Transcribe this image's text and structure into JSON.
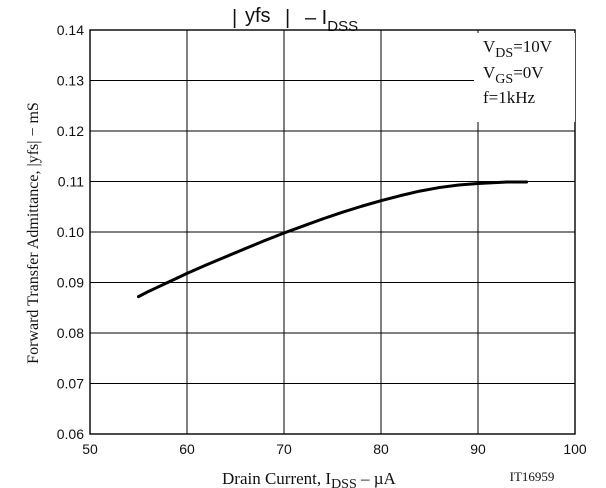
{
  "chart_data": {
    "type": "line",
    "title": "|yfs| − I_DSS",
    "title_parts": {
      "left": "yfs",
      "dash": "– I",
      "sub": "DSS"
    },
    "xlabel": "Drain Current, I_DSS − µA",
    "xlabel_parts": {
      "pre": "Drain Current, I",
      "sub": "DSS",
      "post": " –  µA"
    },
    "ylabel": "Forward Transfer Admittance, |yfs| − mS",
    "xlim": [
      50,
      100
    ],
    "ylim": [
      0.06,
      0.14
    ],
    "x_ticks": [
      "50",
      "60",
      "70",
      "80",
      "90",
      "100"
    ],
    "y_ticks": [
      "0.06",
      "0.07",
      "0.08",
      "0.09",
      "0.10",
      "0.11",
      "0.12",
      "0.13",
      "0.14"
    ],
    "grid": true,
    "conditions": {
      "vds": {
        "pre": "V",
        "sub": "DS",
        "post": "=10V"
      },
      "vgs": {
        "pre": "V",
        "sub": "GS",
        "post": "=0V"
      },
      "freq": "f=1kHz"
    },
    "figure_id": "IT16959",
    "series": [
      {
        "x": [
          55,
          56,
          57,
          58,
          59,
          60,
          62,
          64,
          66,
          68,
          70,
          72,
          74,
          76,
          78,
          80,
          82,
          84,
          86,
          88,
          90,
          92,
          93,
          94,
          95
        ],
        "y": [
          0.0872,
          0.0882,
          0.0891,
          0.09,
          0.0909,
          0.0918,
          0.0935,
          0.0951,
          0.0967,
          0.0983,
          0.0998,
          0.1012,
          0.1026,
          0.1039,
          0.1051,
          0.1062,
          0.1072,
          0.1081,
          0.1088,
          0.1093,
          0.1096,
          0.1098,
          0.1099,
          0.1099,
          0.1099
        ]
      }
    ]
  },
  "colors": {
    "line": "#000000",
    "grid": "#000000",
    "background": "#ffffff"
  }
}
